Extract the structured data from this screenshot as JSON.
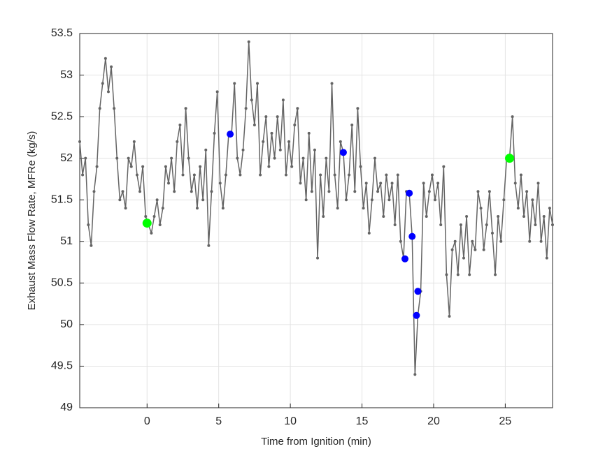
{
  "chart_data": {
    "type": "line",
    "x_label": "Time from Ignition (min)",
    "y_label": "Exhaust Mass Flow Rate, MFRe (kg/s)",
    "xlim": [
      -4.7,
      28.3
    ],
    "ylim": [
      49,
      53.5
    ],
    "xticks": [
      0,
      5,
      10,
      15,
      20,
      25
    ],
    "yticks": [
      49,
      49.5,
      50,
      50.5,
      51,
      51.5,
      52,
      52.5,
      53,
      53.5
    ],
    "grid": true,
    "series": [
      {
        "color": "#646464",
        "style": "line",
        "x": [
          -4.7,
          -4.5,
          -4.3,
          -4.1,
          -3.9,
          -3.7,
          -3.5,
          -3.3,
          -3.1,
          -2.9,
          -2.7,
          -2.5,
          -2.3,
          -2.1,
          -1.9,
          -1.7,
          -1.5,
          -1.3,
          -1.1,
          -0.9,
          -0.7,
          -0.5,
          -0.3,
          -0.1,
          0.1,
          0.3,
          0.5,
          0.7,
          0.9,
          1.1,
          1.3,
          1.5,
          1.7,
          1.9,
          2.1,
          2.3,
          2.5,
          2.7,
          2.9,
          3.1,
          3.3,
          3.5,
          3.7,
          3.9,
          4.1,
          4.3,
          4.5,
          4.7,
          4.9,
          5.1,
          5.3,
          5.5,
          5.7,
          5.9,
          6.1,
          6.3,
          6.5,
          6.7,
          6.9,
          7.1,
          7.3,
          7.5,
          7.7,
          7.9,
          8.1,
          8.3,
          8.5,
          8.7,
          8.9,
          9.1,
          9.3,
          9.5,
          9.7,
          9.9,
          10.1,
          10.3,
          10.5,
          10.7,
          10.9,
          11.1,
          11.3,
          11.5,
          11.7,
          11.9,
          12.1,
          12.3,
          12.5,
          12.7,
          12.9,
          13.1,
          13.3,
          13.5,
          13.7,
          13.9,
          14.1,
          14.3,
          14.5,
          14.7,
          14.9,
          15.1,
          15.3,
          15.5,
          15.7,
          15.9,
          16.1,
          16.3,
          16.5,
          16.7,
          16.9,
          17.1,
          17.3,
          17.5,
          17.7,
          17.9,
          18.1,
          18.3,
          18.5,
          18.7,
          18.9,
          19.1,
          19.3,
          19.5,
          19.7,
          19.9,
          20.1,
          20.3,
          20.5,
          20.7,
          20.9,
          21.1,
          21.3,
          21.5,
          21.7,
          21.9,
          22.1,
          22.3,
          22.5,
          22.7,
          22.9,
          23.1,
          23.3,
          23.5,
          23.7,
          23.9,
          24.1,
          24.3,
          24.5,
          24.7,
          24.9,
          25.1,
          25.3,
          25.5,
          25.7,
          25.9,
          26.1,
          26.3,
          26.5,
          26.7,
          26.9,
          27.1,
          27.3,
          27.5,
          27.7,
          27.9,
          28.1,
          28.3
        ],
        "values": [
          52.2,
          51.8,
          52.0,
          51.2,
          50.95,
          51.6,
          51.9,
          52.6,
          52.9,
          53.2,
          52.8,
          53.1,
          52.6,
          52.0,
          51.5,
          51.6,
          51.4,
          52.0,
          51.9,
          52.2,
          51.8,
          51.6,
          51.9,
          51.3,
          51.2,
          51.1,
          51.3,
          51.5,
          51.2,
          51.4,
          51.9,
          51.7,
          52.0,
          51.6,
          52.2,
          52.4,
          51.8,
          52.6,
          52.0,
          51.6,
          51.8,
          51.4,
          51.9,
          51.5,
          52.1,
          50.95,
          51.6,
          52.3,
          52.8,
          51.7,
          51.4,
          51.8,
          52.3,
          52.3,
          52.9,
          52.0,
          51.8,
          52.1,
          52.6,
          53.4,
          52.7,
          52.4,
          52.9,
          51.8,
          52.2,
          52.5,
          51.9,
          52.3,
          52.0,
          52.5,
          52.1,
          52.7,
          51.8,
          52.2,
          51.9,
          52.4,
          52.6,
          51.7,
          52.0,
          51.5,
          52.3,
          51.6,
          52.1,
          50.8,
          51.8,
          51.3,
          52.0,
          51.6,
          52.9,
          51.8,
          51.4,
          52.2,
          52.07,
          51.5,
          51.8,
          52.4,
          51.6,
          52.6,
          51.9,
          51.4,
          51.7,
          51.1,
          51.5,
          52.0,
          51.6,
          51.7,
          51.3,
          51.8,
          51.5,
          51.7,
          51.2,
          51.8,
          51.0,
          50.8,
          51.6,
          51.58,
          51.06,
          49.4,
          50.11,
          50.4,
          51.7,
          51.3,
          51.6,
          51.8,
          51.5,
          51.7,
          51.2,
          51.9,
          50.6,
          50.1,
          50.9,
          51.0,
          50.6,
          51.2,
          50.8,
          51.3,
          50.6,
          51.0,
          50.9,
          51.6,
          51.4,
          50.9,
          51.2,
          51.6,
          51.1,
          50.6,
          51.3,
          51.0,
          51.5,
          52.0,
          52.0,
          52.5,
          51.7,
          51.4,
          51.8,
          51.3,
          51.6,
          51.0,
          51.5,
          51.2,
          51.7,
          51.0,
          51.3,
          50.8,
          51.4,
          51.2
        ]
      },
      {
        "color": "#0000ff",
        "style": "points",
        "x": [
          5.8,
          13.7,
          18.0,
          18.3,
          18.5,
          18.8,
          18.9
        ],
        "values": [
          52.29,
          52.07,
          50.79,
          51.58,
          51.06,
          50.11,
          50.4
        ]
      },
      {
        "color": "#00ff00",
        "style": "points",
        "x": [
          0,
          25.3
        ],
        "values": [
          51.22,
          52.0
        ]
      }
    ]
  }
}
